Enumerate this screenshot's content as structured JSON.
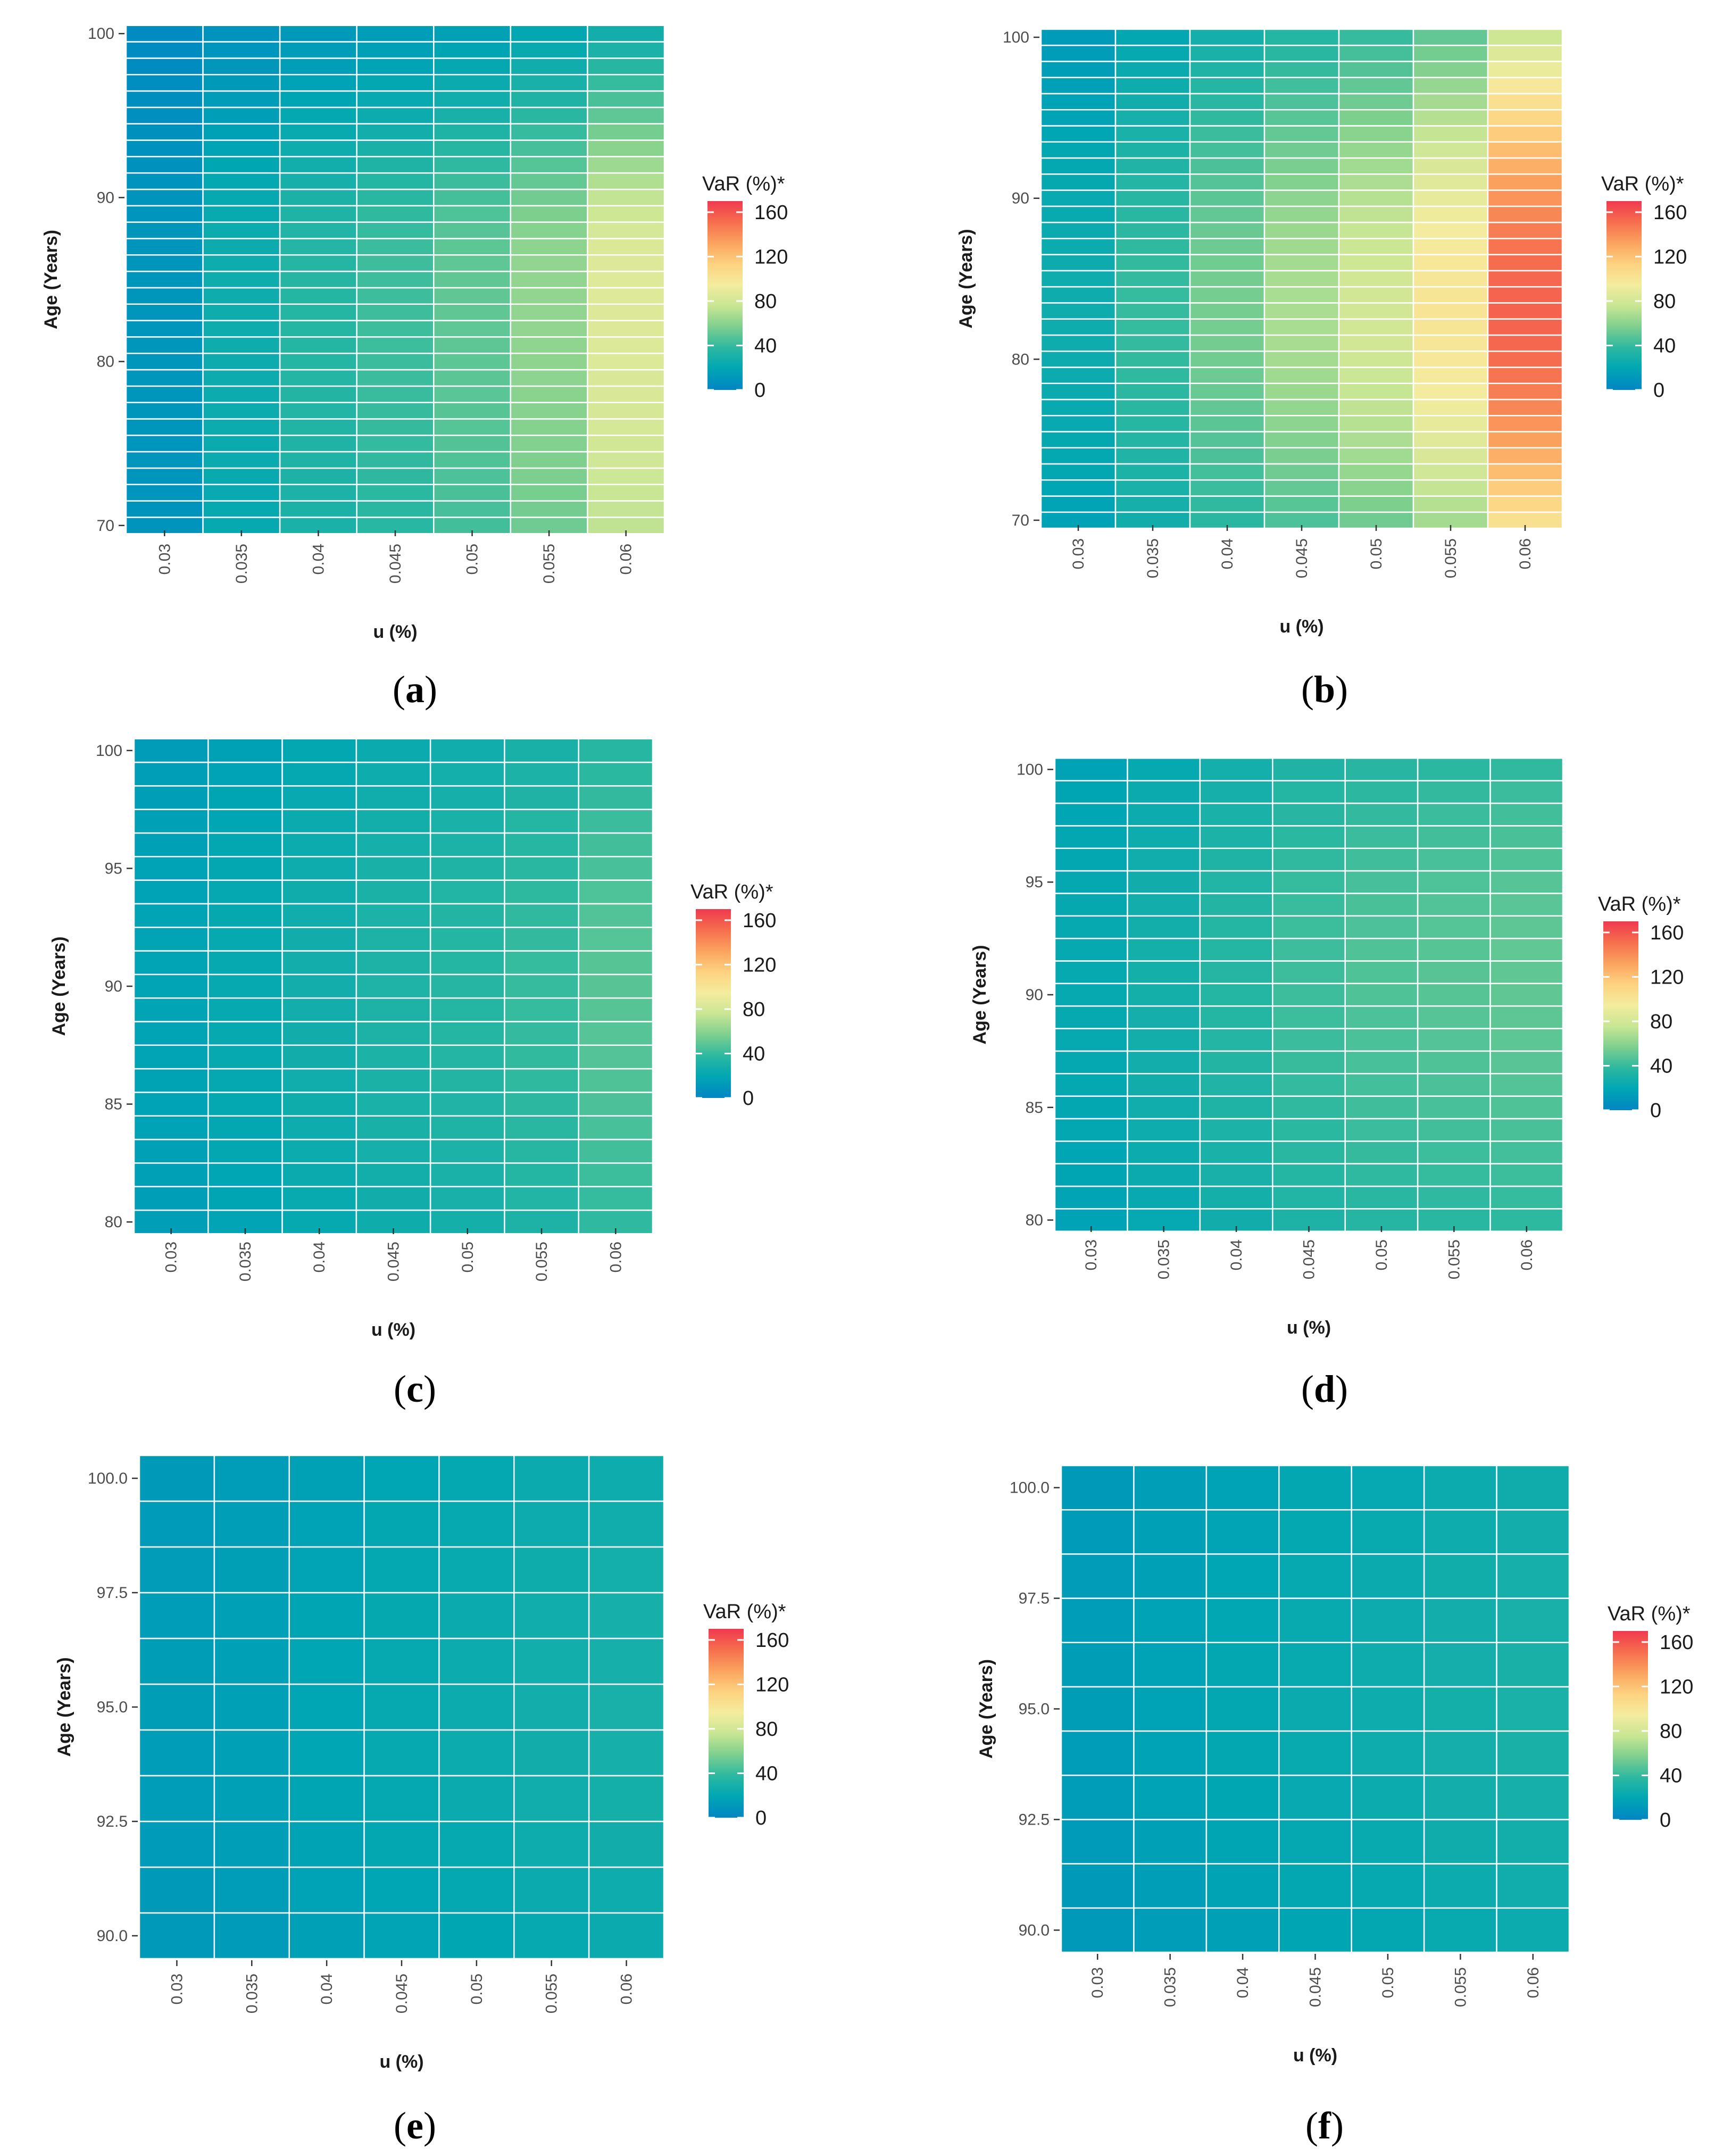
{
  "figure": {
    "palette": {
      "stops": [
        "#0085c4",
        "#00a6b3",
        "#2cb8a0",
        "#7dcf8e",
        "#c8e694",
        "#f4ec9e",
        "#fdd280",
        "#fba35f",
        "#f66e4e",
        "#f0394f"
      ],
      "grid": "#ffffff"
    }
  },
  "chart_data": [
    {
      "type": "heatmap",
      "panel_label": "a",
      "xlabel": "u (%)",
      "ylabel": "Age (Years)",
      "categories": [
        "0.03",
        "0.035",
        "0.04",
        "0.045",
        "0.05",
        "0.055",
        "0.06"
      ],
      "y_ticks": [
        "70",
        "80",
        "90",
        "100"
      ],
      "y_tick_values": [
        70,
        80,
        90,
        100
      ],
      "ages": [
        70,
        100
      ],
      "ylim": [
        69.8,
        100.2
      ],
      "legend": {
        "title": "VaR (%)*",
        "ticks": [
          "160",
          "120",
          "80",
          "40",
          "0"
        ],
        "tick_values": [
          160,
          120,
          80,
          40,
          0
        ],
        "range": [
          0,
          170
        ]
      },
      "col_peak": [
        10,
        25,
        35,
        42,
        50,
        62,
        85
      ],
      "peak_age": 85,
      "left_shape": 26,
      "right_shape": 9,
      "floor": 0.1
    },
    {
      "type": "heatmap",
      "panel_label": "b",
      "xlabel": "u (%)",
      "ylabel": "Age (Years)",
      "categories": [
        "0.03",
        "0.035",
        "0.04",
        "0.045",
        "0.05",
        "0.055",
        "0.06"
      ],
      "y_ticks": [
        "70",
        "80",
        "90",
        "100"
      ],
      "y_tick_values": [
        70,
        80,
        90,
        100
      ],
      "ages": [
        70,
        100
      ],
      "ylim": [
        69.8,
        100.2
      ],
      "legend": {
        "title": "VaR (%)*",
        "ticks": [
          "160",
          "120",
          "80",
          "40",
          "0"
        ],
        "tick_values": [
          160,
          120,
          80,
          40,
          0
        ],
        "range": [
          0,
          170
        ]
      },
      "col_peak": [
        25,
        40,
        55,
        68,
        80,
        100,
        155
      ],
      "peak_age": 83,
      "left_shape": 14,
      "right_shape": 14,
      "floor": 0.05
    },
    {
      "type": "heatmap",
      "panel_label": "c",
      "xlabel": "u (%)",
      "ylabel": "Age (Years)",
      "categories": [
        "0.03",
        "0.035",
        "0.04",
        "0.045",
        "0.05",
        "0.055",
        "0.06"
      ],
      "y_ticks": [
        "80",
        "85",
        "90",
        "95",
        "100"
      ],
      "y_tick_values": [
        80,
        85,
        90,
        95,
        100
      ],
      "ages": [
        80,
        100
      ],
      "ylim": [
        79.8,
        100.2
      ],
      "legend": {
        "title": "VaR (%)*",
        "ticks": [
          "160",
          "120",
          "80",
          "40",
          "0"
        ],
        "tick_values": [
          160,
          120,
          80,
          40,
          0
        ],
        "range": [
          0,
          170
        ]
      },
      "col_peak": [
        18,
        22,
        27,
        32,
        35,
        40,
        48
      ],
      "peak_age": 90,
      "left_shape": 14,
      "right_shape": 12,
      "floor": 0.1
    },
    {
      "type": "heatmap",
      "panel_label": "d",
      "xlabel": "u (%)",
      "ylabel": "Age (Years)",
      "categories": [
        "0.03",
        "0.035",
        "0.04",
        "0.045",
        "0.05",
        "0.055",
        "0.06"
      ],
      "y_ticks": [
        "80",
        "85",
        "90",
        "95",
        "100"
      ],
      "y_tick_values": [
        80,
        85,
        90,
        95,
        100
      ],
      "ages": [
        80,
        100
      ],
      "ylim": [
        79.8,
        100.2
      ],
      "legend": {
        "title": "VaR (%)*",
        "ticks": [
          "160",
          "120",
          "80",
          "40",
          "0"
        ],
        "tick_values": [
          160,
          120,
          80,
          40,
          0
        ],
        "range": [
          0,
          170
        ]
      },
      "col_peak": [
        22,
        28,
        35,
        42,
        46,
        48,
        50
      ],
      "peak_age": 91,
      "left_shape": 14,
      "right_shape": 12,
      "floor": 0.1
    },
    {
      "type": "heatmap",
      "panel_label": "e",
      "xlabel": "u (%)",
      "ylabel": "Age (Years)",
      "categories": [
        "0.03",
        "0.035",
        "0.04",
        "0.045",
        "0.05",
        "0.055",
        "0.06"
      ],
      "y_ticks": [
        "90.0",
        "92.5",
        "95.0",
        "97.5",
        "100.0"
      ],
      "y_tick_values": [
        90,
        92.5,
        95,
        97.5,
        100
      ],
      "ages": [
        90,
        100
      ],
      "ylim": [
        89.5,
        100.5
      ],
      "legend": {
        "title": "VaR (%)*",
        "ticks": [
          "160",
          "120",
          "80",
          "40",
          "0"
        ],
        "tick_values": [
          160,
          120,
          80,
          40,
          0
        ],
        "range": [
          0,
          170
        ]
      },
      "col_peak": [
        14,
        16,
        19,
        22,
        24,
        27,
        29
      ],
      "peak_age": 95,
      "left_shape": 5,
      "right_shape": 6,
      "floor": 0.5
    },
    {
      "type": "heatmap",
      "panel_label": "f",
      "xlabel": "u (%)",
      "ylabel": "Age (Years)",
      "categories": [
        "0.03",
        "0.035",
        "0.04",
        "0.045",
        "0.05",
        "0.055",
        "0.06"
      ],
      "y_ticks": [
        "90.0",
        "92.5",
        "95.0",
        "97.5",
        "100.0"
      ],
      "y_tick_values": [
        90,
        92.5,
        95,
        97.5,
        100
      ],
      "ages": [
        90,
        100
      ],
      "ylim": [
        89.5,
        100.5
      ],
      "legend": {
        "title": "VaR (%)*",
        "ticks": [
          "160",
          "120",
          "80",
          "40",
          "0"
        ],
        "tick_values": [
          160,
          120,
          80,
          40,
          0
        ],
        "range": [
          0,
          170
        ]
      },
      "col_peak": [
        14,
        17,
        20,
        23,
        25,
        28,
        30
      ],
      "peak_age": 95,
      "left_shape": 5,
      "right_shape": 6,
      "floor": 0.5
    }
  ]
}
